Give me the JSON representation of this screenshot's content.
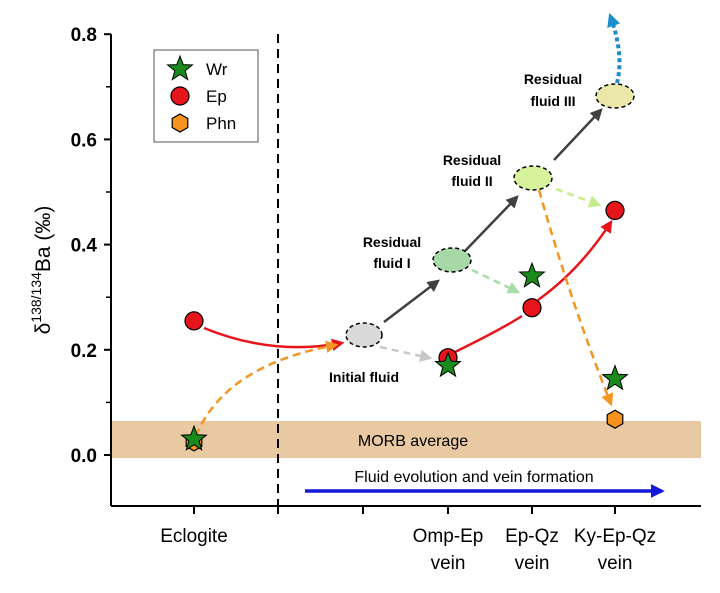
{
  "chart_data": {
    "type": "scatter",
    "ylabel": {
      "delta": "δ",
      "sup": "138/134",
      "rest": "Ba (‰)"
    },
    "ylim": [
      -0.1,
      0.8
    ],
    "yticks": [
      0.0,
      0.2,
      0.4,
      0.6,
      0.8
    ],
    "ytick_labels": [
      "0.0",
      "0.2",
      "0.4",
      "0.6",
      "0.8"
    ],
    "categories": [
      "Eclogite",
      "Omp-Ep vein",
      "Ep-Qz vein",
      "Ky-Ep-Qz vein"
    ],
    "category_lines": [
      [
        "Eclogite"
      ],
      [
        "Omp-Ep",
        "vein"
      ],
      [
        "Ep-Qz",
        "vein"
      ],
      [
        "Ky-Ep-Qz",
        "vein"
      ]
    ],
    "series": [
      {
        "name": "Wr",
        "marker": "star",
        "color": "#1a8a1a",
        "points": [
          {
            "x": "Eclogite",
            "y": 0.03
          },
          {
            "x": "Omp-Ep vein",
            "y": 0.17
          },
          {
            "x": "Ep-Qz vein",
            "y": 0.34
          },
          {
            "x": "Ky-Ep-Qz vein",
            "y": 0.145
          }
        ]
      },
      {
        "name": "Ep",
        "marker": "circle",
        "color": "#e8141c",
        "points": [
          {
            "x": "Eclogite",
            "y": 0.255
          },
          {
            "x": "Omp-Ep vein",
            "y": 0.185
          },
          {
            "x": "Ep-Qz vein",
            "y": 0.28
          },
          {
            "x": "Ky-Ep-Qz vein",
            "y": 0.465
          }
        ]
      },
      {
        "name": "Phn",
        "marker": "hexagon",
        "color": "#f7931e",
        "points": [
          {
            "x": "Eclogite",
            "y": 0.025
          },
          {
            "x": "Ky-Ep-Qz vein",
            "y": 0.068
          }
        ]
      }
    ],
    "band": {
      "label": "MORB average",
      "y0": -0.005,
      "y1": 0.067,
      "color": "#e8c9a2"
    },
    "fluids": [
      {
        "label_lines": [
          "Initial fluid"
        ],
        "y": 0.22,
        "color": "#d9d9d9"
      },
      {
        "label_lines": [
          "Residual",
          "fluid I"
        ],
        "y": 0.37,
        "color": "#a8d8a8"
      },
      {
        "label_lines": [
          "Residual",
          "fluid II"
        ],
        "y": 0.525,
        "color": "#d6f29a"
      },
      {
        "label_lines": [
          "Residual",
          "fluid III"
        ],
        "y": 0.68,
        "color": "#eae7a8"
      }
    ],
    "annotation": "Fluid evolution and vein formation",
    "legend_position": "top-left",
    "grid": false
  }
}
